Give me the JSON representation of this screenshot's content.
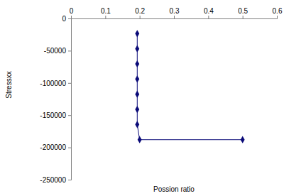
{
  "chart_data": {
    "type": "line",
    "x_label": "Possion ratio",
    "y_label": "Stressxx",
    "series": [
      {
        "name": null,
        "color": "#0a0a78",
        "marker": "diamond",
        "line_style": "solid",
        "x": [
          0.193,
          0.193,
          0.193,
          0.193,
          0.193,
          0.193,
          0.193,
          0.2,
          0.5
        ],
        "values": [
          -23500,
          -47000,
          -70500,
          -94000,
          -117500,
          -141000,
          -164500,
          -188000,
          -188000
        ]
      }
    ],
    "xlim": [
      0,
      0.6
    ],
    "xticks": [
      0,
      0.1,
      0.2,
      0.3,
      0.4,
      0.5,
      0.6
    ],
    "ylim": [
      -250000,
      0
    ],
    "yticks": [
      0,
      -50000,
      -100000,
      -150000,
      -200000,
      -250000
    ],
    "grid": false
  }
}
